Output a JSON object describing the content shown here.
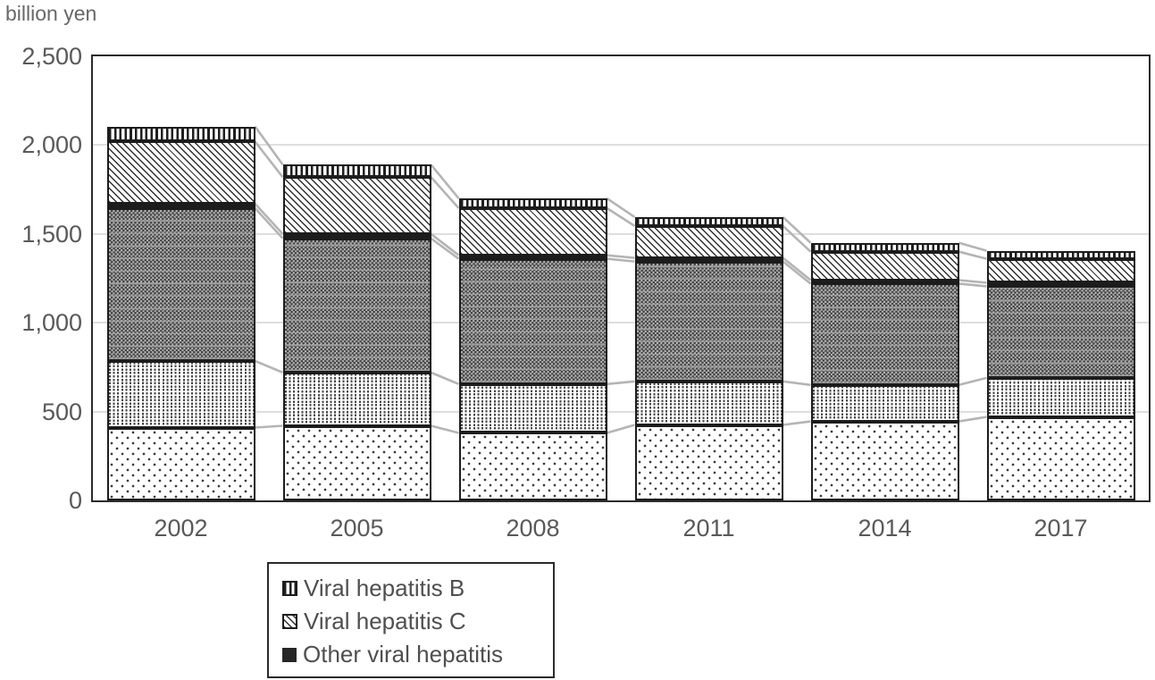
{
  "title": "billion yen",
  "colors": {
    "axis_text": "#595959",
    "grid_line": "#dedede",
    "bar_outline": "#1c1c1c",
    "connector_line": "#b4b4b4",
    "legend_border": "#2b2b2b",
    "background": "#ffffff"
  },
  "y_axis": {
    "ticks": [
      {
        "label": "2,500",
        "value": 2500
      },
      {
        "label": "2,000",
        "value": 2000
      },
      {
        "label": "1,500",
        "value": 1500
      },
      {
        "label": "1,000",
        "value": 1000
      },
      {
        "label": "500",
        "value": 500
      },
      {
        "label": "0",
        "value": 0
      }
    ]
  },
  "legend": {
    "items": [
      {
        "label": "Viral hepatitis B",
        "swatch": "vertical-stripes"
      },
      {
        "label": "Viral hepatitis C",
        "swatch": "diagonal-hatch"
      },
      {
        "label": "Other viral hepatitis",
        "swatch": "solid-black"
      }
    ]
  },
  "chart_data": {
    "type": "bar",
    "stacked": true,
    "title": "billion yen",
    "ylabel": "billion yen",
    "categories": [
      "2002",
      "2005",
      "2008",
      "2011",
      "2014",
      "2017"
    ],
    "series": [
      {
        "name": "unlabeled bottom segment (sparse dot pattern)",
        "in_legend": false,
        "pattern": "sparse-dots",
        "values": [
          410,
          420,
          380,
          425,
          445,
          470
        ]
      },
      {
        "name": "unlabeled segment (dotted column pattern)",
        "in_legend": false,
        "pattern": "dotted-columns",
        "values": [
          375,
          300,
          275,
          245,
          205,
          220
        ]
      },
      {
        "name": "unlabeled segment (gray checker pattern)",
        "in_legend": false,
        "pattern": "gray-checker",
        "values": [
          860,
          755,
          705,
          675,
          570,
          515
        ]
      },
      {
        "name": "Other viral hepatitis",
        "in_legend": true,
        "pattern": "solid-black",
        "values": [
          25,
          25,
          20,
          20,
          20,
          20
        ]
      },
      {
        "name": "Viral hepatitis C",
        "in_legend": true,
        "pattern": "diagonal-hatch",
        "values": [
          350,
          320,
          265,
          180,
          160,
          135
        ]
      },
      {
        "name": "Viral hepatitis B",
        "in_legend": true,
        "pattern": "vertical-stripes",
        "values": [
          85,
          70,
          55,
          50,
          50,
          45
        ]
      }
    ],
    "stack_totals": [
      2105,
      1890,
      1700,
      1595,
      1450,
      1405
    ],
    "ylim": [
      0,
      2500
    ],
    "grid": true,
    "series_connector_lines": true,
    "legend_position": "bottom-left"
  }
}
